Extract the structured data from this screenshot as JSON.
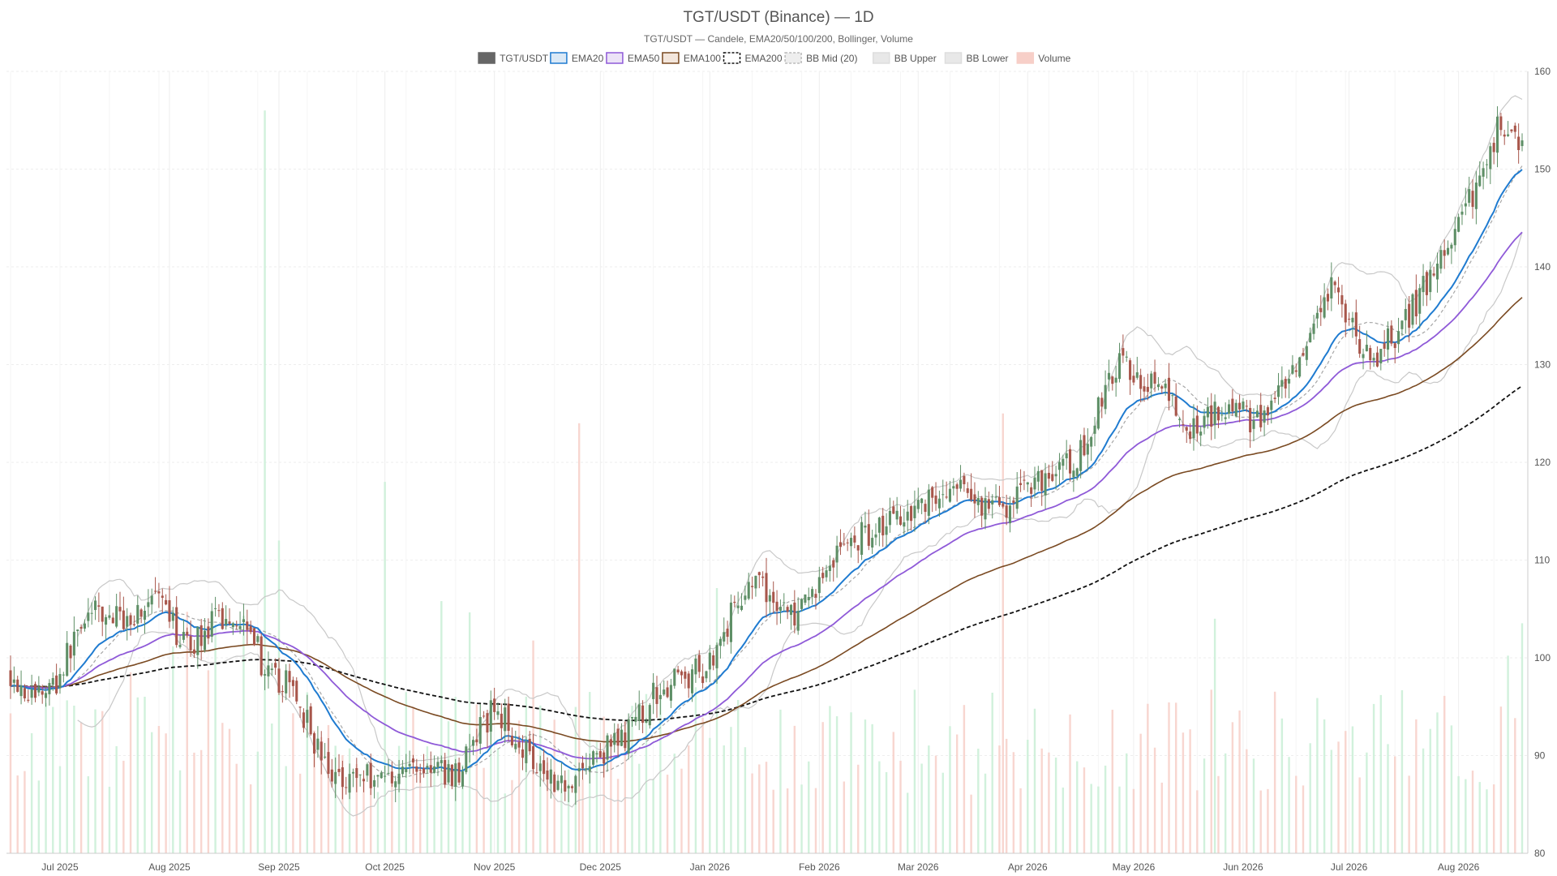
{
  "chart_data": {
    "type": "candlestick",
    "title": "TGT/USDT (Binance) — 1D",
    "subtitle": "TGT/USDT — Candele, EMA20/50/100/200, Bollinger, Volume",
    "legend": {
      "placement": "top-center",
      "items": [
        {
          "label": "TGT/USDT",
          "swatch": "solid",
          "fill": "#666666",
          "stroke": "#666666"
        },
        {
          "label": "EMA20",
          "swatch": "solid",
          "fill": "#dbe9f6",
          "stroke": "#1f7bd0"
        },
        {
          "label": "EMA50",
          "swatch": "solid",
          "fill": "#ece3f7",
          "stroke": "#8f5ad8"
        },
        {
          "label": "EMA100",
          "swatch": "solid",
          "fill": "#f3e6dc",
          "stroke": "#7a4a22"
        },
        {
          "label": "EMA200",
          "swatch": "dashed",
          "fill": "#ffffff",
          "stroke": "#111111"
        },
        {
          "label": "BB Mid (20)",
          "swatch": "dashed",
          "fill": "#eeeeee",
          "stroke": "#bbbbbb"
        },
        {
          "label": "BB Upper",
          "swatch": "solid",
          "fill": "#e8e8e8",
          "stroke": "#dddddd"
        },
        {
          "label": "BB Lower",
          "swatch": "solid",
          "fill": "#e8e8e8",
          "stroke": "#dddddd"
        },
        {
          "label": "Volume",
          "swatch": "solid",
          "fill": "#f7cfc8",
          "stroke": "#f7cfc8"
        }
      ]
    },
    "x_axis": {
      "start": "2025-06-17",
      "end": "2026-08-19",
      "tick_labels": [
        {
          "date": "2025-07-01",
          "label": "Jul 2025"
        },
        {
          "date": "2025-08-01",
          "label": "Aug 2025"
        },
        {
          "date": "2025-09-01",
          "label": "Sep 2025"
        },
        {
          "date": "2025-10-01",
          "label": "Oct 2025"
        },
        {
          "date": "2025-11-01",
          "label": "Nov 2025"
        },
        {
          "date": "2025-12-01",
          "label": "Dec 2025"
        },
        {
          "date": "2026-01-01",
          "label": "Jan 2026"
        },
        {
          "date": "2026-02-01",
          "label": "Feb 2026"
        },
        {
          "date": "2026-03-01",
          "label": "Mar 2026"
        },
        {
          "date": "2026-04-01",
          "label": "Apr 2026"
        },
        {
          "date": "2026-05-01",
          "label": "May 2026"
        },
        {
          "date": "2026-06-01",
          "label": "Jun 2026"
        },
        {
          "date": "2026-07-01",
          "label": "Jul 2026"
        },
        {
          "date": "2026-08-01",
          "label": "Aug 2026"
        }
      ]
    },
    "y_axis": {
      "position": "right",
      "ylim": [
        80,
        160
      ],
      "ticks": [
        80,
        90,
        100,
        110,
        120,
        130,
        140,
        150,
        160
      ]
    },
    "grid": true,
    "colors": {
      "up": "#5e8f66",
      "down": "#a8564b",
      "volume_up": "#c9efd6",
      "volume_down": "#f7cfc8",
      "ema20": "#1f7bd0",
      "ema50": "#8f5ad8",
      "ema100": "#7a4a22",
      "ema200": "#111111",
      "bb_band": "#c8c8c8",
      "bb_mid": "#a6a6a6"
    },
    "price_path": [
      {
        "date": "2025-06-17",
        "close": 98.5
      },
      {
        "date": "2025-06-23",
        "close": 96
      },
      {
        "date": "2025-06-30",
        "close": 97.5
      },
      {
        "date": "2025-07-08",
        "close": 104.5
      },
      {
        "date": "2025-07-20",
        "close": 104
      },
      {
        "date": "2025-07-28",
        "close": 106
      },
      {
        "date": "2025-08-06",
        "close": 101
      },
      {
        "date": "2025-08-15",
        "close": 104
      },
      {
        "date": "2025-08-24",
        "close": 104
      },
      {
        "date": "2025-08-28",
        "close": 98
      },
      {
        "date": "2025-09-05",
        "close": 97
      },
      {
        "date": "2025-09-15",
        "close": 88
      },
      {
        "date": "2025-09-24",
        "close": 88
      },
      {
        "date": "2025-10-01",
        "close": 88
      },
      {
        "date": "2025-10-10",
        "close": 89
      },
      {
        "date": "2025-10-21",
        "close": 88
      },
      {
        "date": "2025-11-01",
        "close": 95
      },
      {
        "date": "2025-11-09",
        "close": 91
      },
      {
        "date": "2025-11-20",
        "close": 87
      },
      {
        "date": "2025-11-27",
        "close": 89
      },
      {
        "date": "2025-12-08",
        "close": 92
      },
      {
        "date": "2025-12-18",
        "close": 97
      },
      {
        "date": "2025-12-31",
        "close": 99
      },
      {
        "date": "2026-01-12",
        "close": 108
      },
      {
        "date": "2026-01-26",
        "close": 104
      },
      {
        "date": "2026-02-06",
        "close": 111
      },
      {
        "date": "2026-02-20",
        "close": 114
      },
      {
        "date": "2026-03-02",
        "close": 116
      },
      {
        "date": "2026-03-12",
        "close": 117
      },
      {
        "date": "2026-03-24",
        "close": 115
      },
      {
        "date": "2026-04-02",
        "close": 118
      },
      {
        "date": "2026-04-15",
        "close": 120
      },
      {
        "date": "2026-04-26",
        "close": 130
      },
      {
        "date": "2026-05-08",
        "close": 128
      },
      {
        "date": "2026-05-16",
        "close": 123
      },
      {
        "date": "2026-05-26",
        "close": 126
      },
      {
        "date": "2026-06-06",
        "close": 124
      },
      {
        "date": "2026-06-18",
        "close": 130
      },
      {
        "date": "2026-06-26",
        "close": 138
      },
      {
        "date": "2026-07-07",
        "close": 130
      },
      {
        "date": "2026-07-16",
        "close": 134
      },
      {
        "date": "2026-07-26",
        "close": 140
      },
      {
        "date": "2026-08-06",
        "close": 148
      },
      {
        "date": "2026-08-13",
        "close": 155
      },
      {
        "date": "2026-08-19",
        "close": 153
      }
    ],
    "volume_spikes": [
      {
        "date": "2025-08-28",
        "volume": 156,
        "direction": "up"
      },
      {
        "date": "2025-09-01",
        "volume": 112,
        "direction": "up"
      },
      {
        "date": "2025-10-01",
        "volume": 118,
        "direction": "up"
      },
      {
        "date": "2025-11-25",
        "volume": 124,
        "direction": "down"
      },
      {
        "date": "2026-03-25",
        "volume": 125,
        "direction": "down"
      },
      {
        "date": "2026-05-24",
        "volume": 104,
        "direction": "up"
      }
    ]
  }
}
